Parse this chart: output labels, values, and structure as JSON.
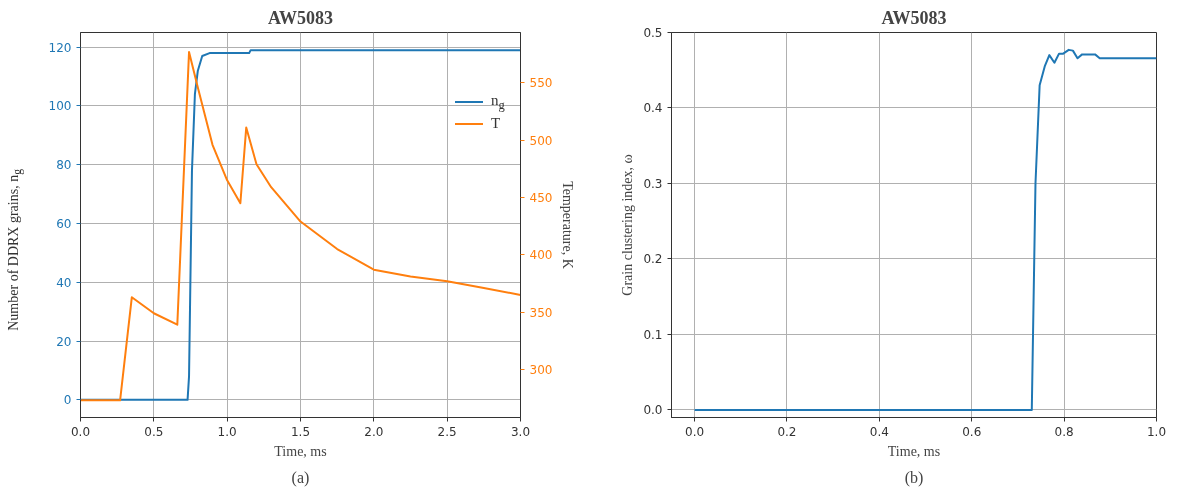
{
  "chart_data": [
    {
      "type": "line",
      "title": "AW5083",
      "xlabel": "Time, ms",
      "ylabel": "Number of DDRX grains, n$_{g}$",
      "y2label": "Temperature, K",
      "annotations": [
        "(a)"
      ],
      "xlim": [
        0,
        3
      ],
      "xticks": [
        {
          "value": 0,
          "label": "0.0"
        },
        {
          "value": 0.5,
          "label": "0.5"
        },
        {
          "value": 1,
          "label": "1.0"
        },
        {
          "value": 1.5,
          "label": "1.5"
        },
        {
          "value": 2,
          "label": "2.0"
        },
        {
          "value": 2.5,
          "label": "2.5"
        },
        {
          "value": 3,
          "label": "3.0"
        }
      ],
      "ylim": [
        -6,
        125
      ],
      "yticks": [
        0,
        20,
        40,
        60,
        80,
        100,
        120
      ],
      "y2lim": [
        258,
        594
      ],
      "y2ticks": [
        300,
        350,
        400,
        450,
        500,
        550
      ],
      "grid": true,
      "legend": "top right",
      "series": [
        {
          "name": "n$_{g}$",
          "color": "#1f77b4",
          "x": [
            0,
            0.73,
            0.74,
            0.76,
            0.78,
            0.8,
            0.83,
            0.88,
            1.15,
            1.16,
            3.0
          ],
          "values": [
            0,
            0,
            8,
            78,
            104,
            112,
            117,
            118,
            118,
            119,
            119
          ]
        },
        {
          "name": "T",
          "color": "#ff7f0e",
          "axis": "y2",
          "x": [
            0,
            0.27,
            0.35,
            0.5,
            0.66,
            0.74,
            0.8,
            0.9,
            1.0,
            1.09,
            1.13,
            1.2,
            1.3,
            1.5,
            1.75,
            2.0,
            2.25,
            2.5,
            2.75,
            3.0
          ],
          "values": [
            273,
            273,
            363,
            349,
            339,
            577,
            546,
            496,
            465,
            445,
            511,
            479,
            459,
            429,
            405,
            387,
            381,
            377,
            371,
            365
          ]
        }
      ]
    },
    {
      "type": "line",
      "title": "AW5083",
      "xlabel": "Time, ms",
      "ylabel": "Grain clustering index, ω",
      "annotations": [
        "(b)"
      ],
      "xlim": [
        -0.05,
        1.0
      ],
      "xticks": [
        {
          "value": 0,
          "label": "0.0"
        },
        {
          "value": 0.2,
          "label": "0.2"
        },
        {
          "value": 0.4,
          "label": "0.4"
        },
        {
          "value": 0.6,
          "label": "0.6"
        },
        {
          "value": 0.8,
          "label": "0.8"
        },
        {
          "value": 1.0,
          "label": "1.0"
        }
      ],
      "ylim": [
        -0.01,
        0.5
      ],
      "yticks": [
        {
          "value": 0,
          "label": "0.0"
        },
        {
          "value": 0.1,
          "label": "0.1"
        },
        {
          "value": 0.2,
          "label": "0.2"
        },
        {
          "value": 0.3,
          "label": "0.3"
        },
        {
          "value": 0.4,
          "label": "0.4"
        },
        {
          "value": 0.5,
          "label": "0.5"
        }
      ],
      "grid": true,
      "series": [
        {
          "color": "#1f77b4",
          "x": [
            0,
            0.73,
            0.738,
            0.747,
            0.758,
            0.768,
            0.779,
            0.789,
            0.798,
            0.81,
            0.819,
            0.829,
            0.839,
            0.867,
            0.877,
            1.0
          ],
          "values": [
            0,
            0,
            0.3,
            0.43,
            0.455,
            0.47,
            0.46,
            0.472,
            0.472,
            0.477,
            0.476,
            0.466,
            0.471,
            0.471,
            0.466,
            0.466
          ]
        }
      ]
    }
  ]
}
